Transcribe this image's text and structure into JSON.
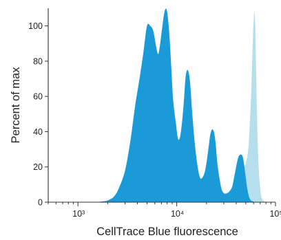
{
  "chart_data": {
    "type": "area",
    "title": "",
    "xlabel": "CellTrace Blue fluorescence",
    "ylabel": "Percent of max",
    "x_scale": "log",
    "xlim": [
      500,
      100000
    ],
    "ylim": [
      0,
      110
    ],
    "grid": false,
    "legend": "none",
    "x_ticks": [
      {
        "value": 1000,
        "label": "10³"
      },
      {
        "value": 10000,
        "label": "10⁴"
      },
      {
        "value": 100000,
        "label": "10⁵"
      }
    ],
    "y_ticks": [
      {
        "value": 0,
        "label": "0"
      },
      {
        "value": 20,
        "label": "20"
      },
      {
        "value": 40,
        "label": "40"
      },
      {
        "value": 60,
        "label": "60"
      },
      {
        "value": 80,
        "label": "80"
      },
      {
        "value": 100,
        "label": "100"
      }
    ],
    "series": [
      {
        "color": "#1a9bd7",
        "x": [
          1500,
          1800,
          2000,
          2300,
          2600,
          3000,
          3400,
          3800,
          4200,
          4600,
          5000,
          5400,
          5800,
          6200,
          6500,
          6800,
          7200,
          7600,
          8000,
          8400,
          8800,
          9200,
          9800,
          10300,
          10800,
          11300,
          11800,
          12300,
          12900,
          13600,
          14300,
          15200,
          16200,
          17200,
          18200,
          19400,
          20700,
          22000,
          23400,
          24600,
          25800,
          27200,
          28600,
          30200,
          32000,
          34000,
          36500,
          39000,
          41800,
          44500,
          47000,
          49500,
          51700,
          54000,
          56500,
          59000,
          61500,
          64500,
          67500,
          70500,
          74000
        ],
        "values": [
          0,
          0.5,
          1,
          3,
          8,
          18,
          35,
          55,
          70,
          85,
          100,
          100,
          97,
          88,
          84,
          90,
          101,
          109,
          108,
          96,
          77,
          58,
          45,
          36,
          37,
          45,
          57,
          71,
          75,
          69,
          52,
          34,
          21,
          14,
          14,
          18,
          28,
          39,
          41,
          35,
          22,
          13,
          7,
          5,
          5,
          6,
          9,
          17,
          25,
          27,
          25,
          16,
          8,
          3,
          1,
          0.5,
          0,
          0,
          0,
          0,
          0
        ]
      },
      {
        "color": "#a9d9ea",
        "x": [
          14000,
          20000,
          26000,
          32000,
          36000,
          40000,
          44000,
          47500,
          50500,
          53000,
          55000,
          57000,
          58500,
          59500,
          60500,
          61000,
          61800,
          62600,
          63400,
          64500,
          66000,
          68000,
          70000,
          72000,
          75000,
          79000,
          84000,
          90000
        ],
        "values": [
          0,
          0.5,
          1,
          2,
          3,
          6,
          11,
          18,
          23,
          30,
          45,
          65,
          85,
          98,
          105,
          108,
          106,
          97,
          80,
          58,
          35,
          17,
          8,
          3,
          1,
          0.3,
          0,
          0
        ]
      }
    ]
  }
}
